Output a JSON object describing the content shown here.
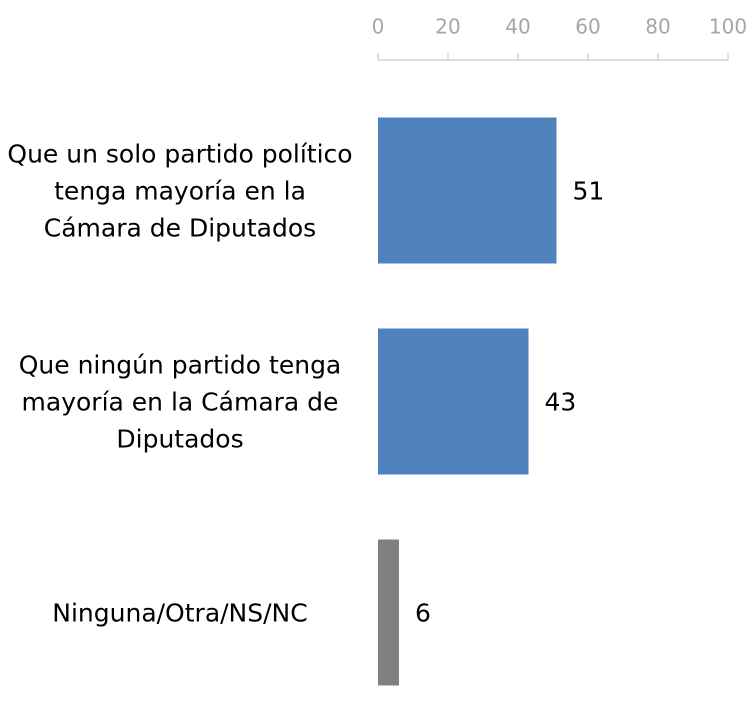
{
  "chart_data": {
    "type": "bar",
    "orientation": "horizontal",
    "categories": [
      "Que un solo partido político tenga mayoría en la Cámara de Diputados",
      "Que ningún partido tenga mayoría en la Cámara de Diputados",
      "Ninguna/Otra/NS/NC"
    ],
    "values": [
      51,
      43,
      6
    ],
    "colors": [
      "#4f81bd",
      "#4f81bd",
      "#808080"
    ],
    "xlim": [
      0,
      100
    ],
    "xticks": [
      0,
      20,
      40,
      60,
      80,
      100
    ],
    "axis_position": "top"
  }
}
